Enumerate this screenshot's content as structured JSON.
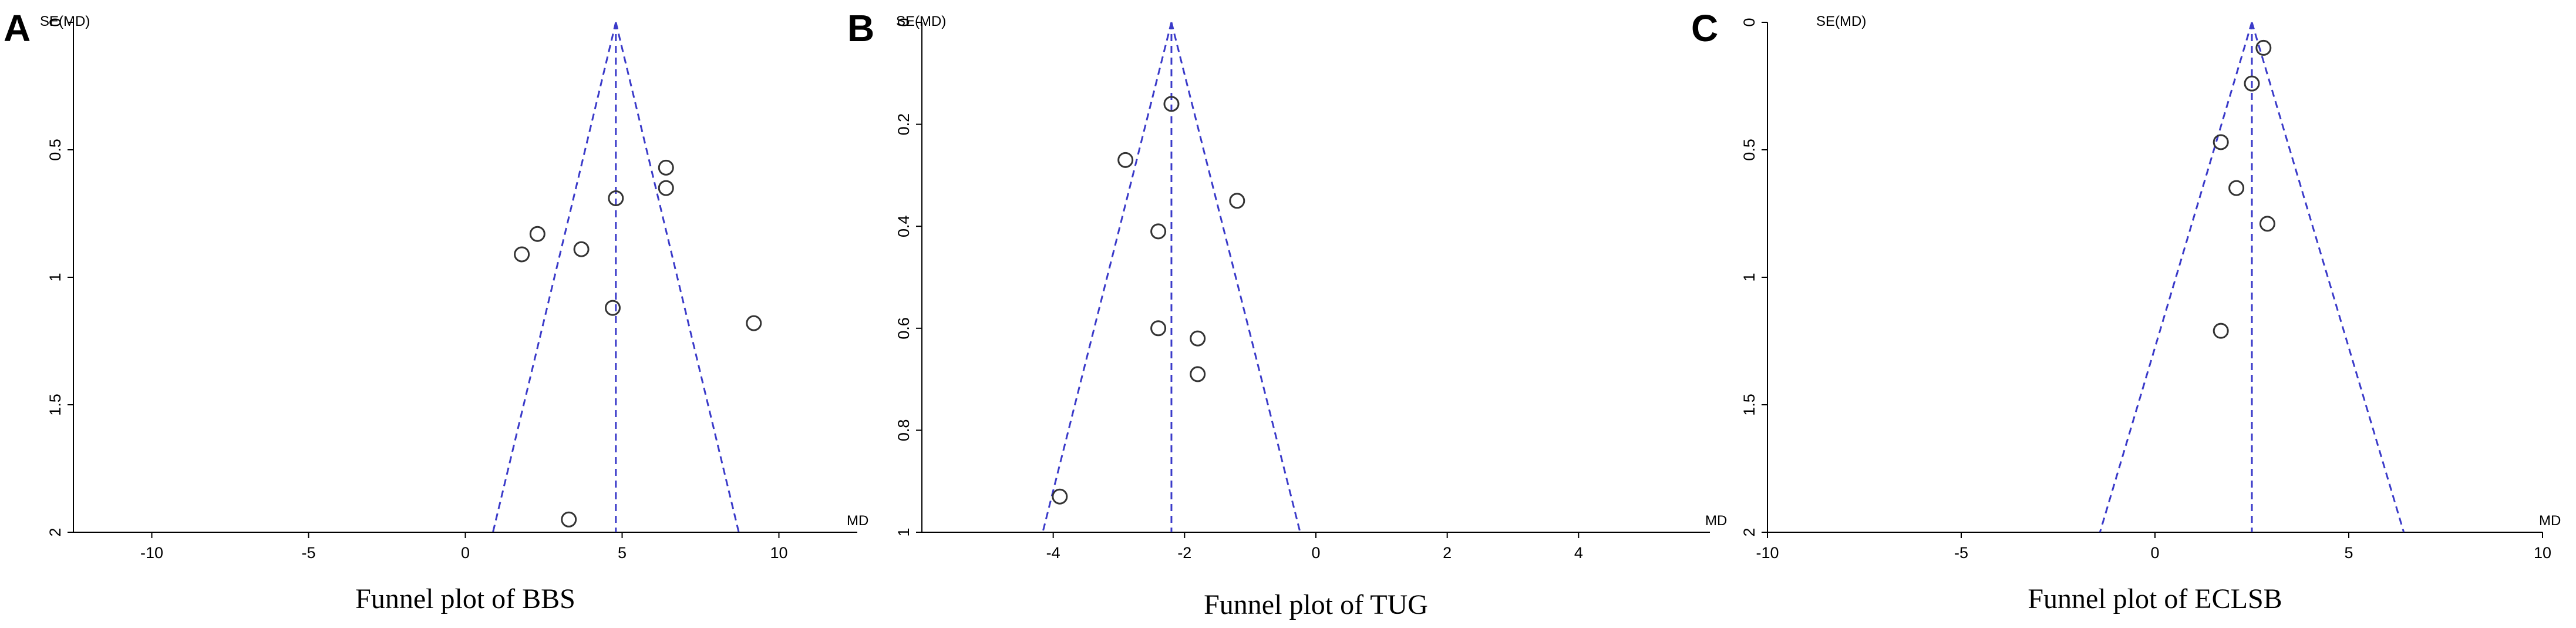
{
  "chart_data": [
    {
      "type": "scatter",
      "panel_label": "A",
      "title": "Funnel plot of  BBS",
      "xlabel": "MD",
      "ylabel": "SE(MD)",
      "xlim": [
        -12.5,
        12.5
      ],
      "ylim": [
        0,
        2
      ],
      "y_inverted": true,
      "xticks": [
        -10,
        -5,
        0,
        5,
        10
      ],
      "yticks": [
        0,
        0.5,
        1,
        1.5,
        2
      ],
      "xtick_labels": [
        "-10",
        "-5",
        "0",
        "5",
        "10"
      ],
      "ytick_labels": [
        "0",
        "0.5",
        "1",
        "1.5",
        "2"
      ],
      "pooled_md": 4.8,
      "funnel_z": 1.96,
      "colors": {
        "funnel": "#3a3ac9",
        "points": "#333333"
      },
      "points": [
        {
          "x": 6.4,
          "y": 0.57
        },
        {
          "x": 6.4,
          "y": 0.65
        },
        {
          "x": 4.8,
          "y": 0.69
        },
        {
          "x": 2.3,
          "y": 0.83
        },
        {
          "x": 3.7,
          "y": 0.89
        },
        {
          "x": 1.8,
          "y": 0.91
        },
        {
          "x": 4.7,
          "y": 1.12
        },
        {
          "x": 9.2,
          "y": 1.18
        },
        {
          "x": 3.3,
          "y": 1.95
        }
      ]
    },
    {
      "type": "scatter",
      "panel_label": "B",
      "title": "Funnel plot of  TUG",
      "xlabel": "MD",
      "ylabel": "SE(MD)",
      "xlim": [
        -6,
        6
      ],
      "ylim": [
        0,
        1
      ],
      "y_inverted": true,
      "xticks": [
        -4,
        -2,
        0,
        2,
        4
      ],
      "yticks": [
        0,
        0.2,
        0.4,
        0.6,
        0.8,
        1
      ],
      "xtick_labels": [
        "-4",
        "-2",
        "0",
        "2",
        "4"
      ],
      "ytick_labels": [
        "0",
        "0.2",
        "0.4",
        "0.6",
        "0.8",
        "1"
      ],
      "pooled_md": -2.2,
      "funnel_z": 1.96,
      "colors": {
        "funnel": "#3a3ac9",
        "points": "#333333"
      },
      "points": [
        {
          "x": -2.2,
          "y": 0.16
        },
        {
          "x": -2.9,
          "y": 0.27
        },
        {
          "x": -1.2,
          "y": 0.35
        },
        {
          "x": -2.4,
          "y": 0.41
        },
        {
          "x": -2.4,
          "y": 0.6
        },
        {
          "x": -1.8,
          "y": 0.62
        },
        {
          "x": -1.8,
          "y": 0.69
        },
        {
          "x": -3.9,
          "y": 0.93
        }
      ]
    },
    {
      "type": "scatter",
      "panel_label": "C",
      "title": "Funnel plot of  ECLSB",
      "xlabel": "MD",
      "ylabel": "SE(MD)",
      "xlim": [
        -10,
        10
      ],
      "ylim": [
        0,
        2
      ],
      "y_inverted": true,
      "xticks": [
        -10,
        -5,
        0,
        5,
        10
      ],
      "yticks": [
        0,
        0.5,
        1,
        1.5,
        2
      ],
      "xtick_labels": [
        "-10",
        "-5",
        "0",
        "5",
        "10"
      ],
      "ytick_labels": [
        "0",
        "0.5",
        "1",
        "1.5",
        "2"
      ],
      "pooled_md": 2.5,
      "funnel_z": 1.96,
      "colors": {
        "funnel": "#3a3ac9",
        "points": "#333333"
      },
      "points": [
        {
          "x": 2.8,
          "y": 0.1
        },
        {
          "x": 2.5,
          "y": 0.24
        },
        {
          "x": 1.7,
          "y": 0.47
        },
        {
          "x": 2.1,
          "y": 0.65
        },
        {
          "x": 2.9,
          "y": 0.79
        },
        {
          "x": 1.7,
          "y": 1.21
        }
      ]
    }
  ]
}
